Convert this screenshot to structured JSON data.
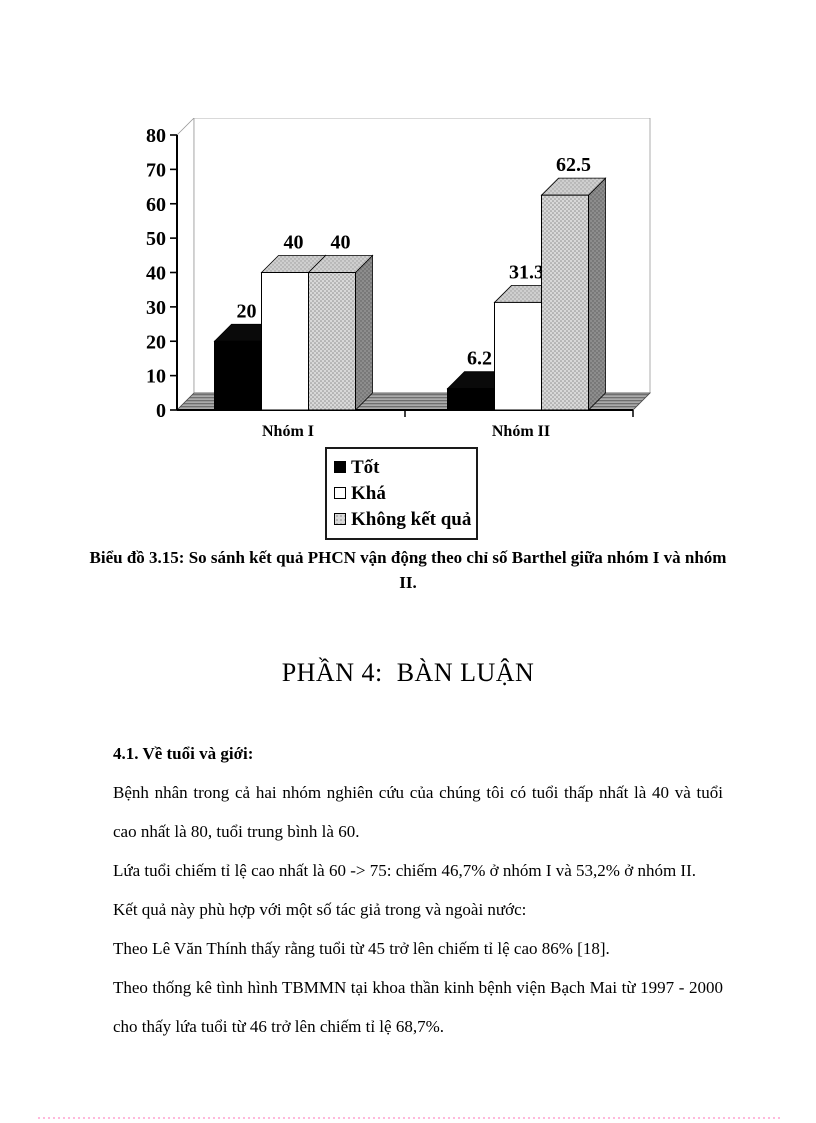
{
  "page": {
    "background": "#ffffff",
    "footer_dotted_line_color": "#ffb9dc"
  },
  "figure": {
    "caption": "Biểu đồ 3.15: So sánh kết quả PHCN vận động theo chỉ số Barthel giữa nhóm I và nhóm II."
  },
  "chart_data": {
    "type": "bar",
    "style": "3d-column",
    "title": "",
    "xlabel": "",
    "ylabel": "",
    "categories": [
      "Nhóm I",
      "Nhóm II"
    ],
    "series": [
      {
        "name": "Tốt",
        "color": "#000000",
        "texture": "solid",
        "values": [
          20,
          6.2
        ],
        "labels": [
          "20",
          "6.2"
        ]
      },
      {
        "name": "Khá",
        "color": "#ffffff",
        "texture": "solid",
        "values": [
          40,
          31.3
        ],
        "labels": [
          "40",
          "31.3"
        ]
      },
      {
        "name": "Không kết quả",
        "color": "#d8d8d8",
        "texture": "dots",
        "values": [
          40,
          62.5
        ],
        "labels": [
          "40",
          "62.5"
        ]
      }
    ],
    "ylim": [
      0,
      80
    ],
    "ytick_step": 10,
    "grid": false,
    "legend_position": "below-chart"
  },
  "section": {
    "heading": "PHẦN 4:  BÀN LUẬN"
  },
  "discussion": {
    "subheading": "4.1. Về tuổi và giới:",
    "paragraphs": [
      "Bệnh nhân trong cả hai nhóm nghiên cứu của chúng tôi có tuổi thấp nhất là 40 và tuổi cao nhất là 80, tuổi trung bình là 60.",
      "Lứa tuổi chiếm tỉ lệ cao nhất là 60 -> 75: chiếm 46,7% ở nhóm I và 53,2% ở nhóm II.",
      "Kết quả này phù hợp với một số tác giả trong và ngoài nước:",
      "Theo Lê Văn Thính thấy rằng tuổi từ 45 trở lên chiếm tỉ lệ cao 86% [18].",
      "Theo thống kê tình hình TBMMN tại khoa thần kinh bệnh viện Bạch Mai từ 1997 - 2000 cho thấy lứa tuổi từ 46 trở lên chiếm tỉ lệ 68,7%."
    ]
  }
}
